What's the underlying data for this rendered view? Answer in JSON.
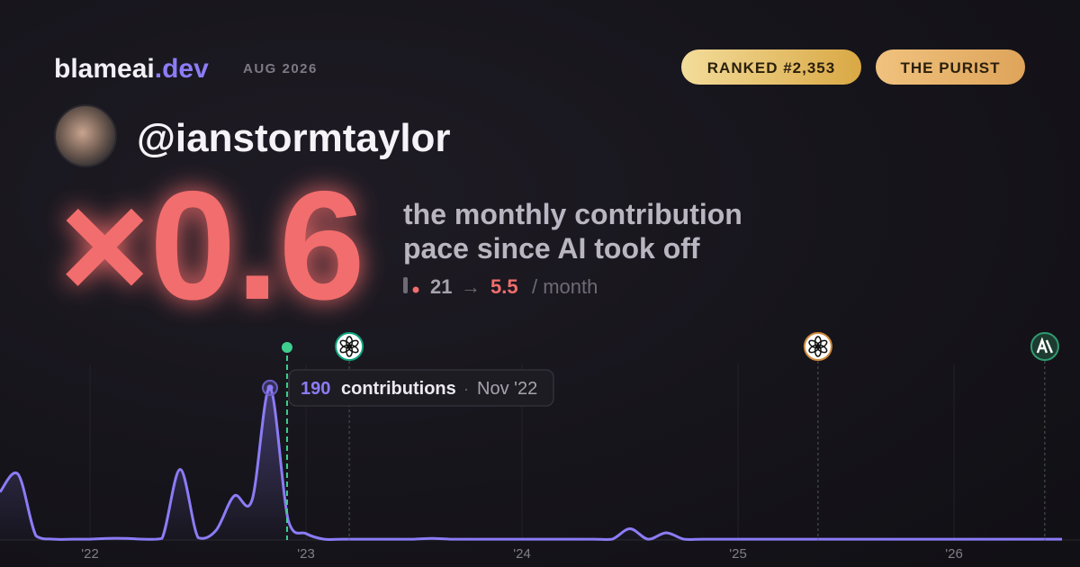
{
  "brand": {
    "name": "blameai",
    "tld": ".dev",
    "date": "AUG 2026"
  },
  "badges": [
    "RANKED #2,353",
    "THE PURIST"
  ],
  "handle": "@ianstormtaylor",
  "multiplier": "×0.6",
  "description": [
    "the monthly contribution",
    "pace since AI took off"
  ],
  "pace": {
    "before": "21",
    "arrow": "→",
    "after": "5.5",
    "unit": "/ month"
  },
  "chart_data": {
    "type": "line",
    "x": [
      2021.583,
      2021.667,
      2021.75,
      2021.833,
      2021.917,
      2022.0,
      2022.083,
      2022.167,
      2022.25,
      2022.333,
      2022.417,
      2022.5,
      2022.583,
      2022.667,
      2022.75,
      2022.833,
      2022.917,
      2023.0,
      2023.083,
      2023.167,
      2023.25,
      2023.333,
      2023.417,
      2023.5,
      2023.583,
      2023.667,
      2023.75,
      2023.833,
      2023.917,
      2024.0,
      2024.083,
      2024.167,
      2024.25,
      2024.333,
      2024.417,
      2024.5,
      2024.583,
      2024.667,
      2024.75,
      2024.833,
      2024.917,
      2025.0,
      2025.083,
      2025.167,
      2025.25,
      2025.333,
      2025.417,
      2025.5,
      2025.583,
      2025.667,
      2025.75,
      2025.833,
      2025.917,
      2026.0,
      2026.083,
      2026.167,
      2026.25,
      2026.333,
      2026.417,
      2026.5
    ],
    "series": [
      {
        "name": "contributions",
        "color": "#8b7cf6",
        "values": [
          60,
          82,
          5,
          1,
          1,
          1,
          2,
          2,
          1,
          2,
          88,
          3,
          12,
          55,
          50,
          190,
          25,
          8,
          1,
          1,
          1,
          1,
          1,
          1,
          2,
          1,
          1,
          1,
          1,
          1,
          1,
          1,
          1,
          1,
          1,
          14,
          1,
          9,
          1,
          1,
          1,
          1,
          1,
          1,
          1,
          1,
          1,
          1,
          1,
          1,
          1,
          1,
          1,
          1,
          1,
          1,
          1,
          1,
          1,
          1
        ]
      }
    ],
    "xlim": [
      2021.583,
      2026.583
    ],
    "ylim": [
      0,
      200
    ],
    "xticks": [
      {
        "value": 2022,
        "label": "'22"
      },
      {
        "value": 2023,
        "label": "'23"
      },
      {
        "value": 2024,
        "label": "'24"
      },
      {
        "value": 2025,
        "label": "'25"
      },
      {
        "value": 2026,
        "label": "'26"
      }
    ],
    "grid": true,
    "markers": [
      2022.912,
      2023.2,
      2025.37,
      2026.42
    ],
    "tooltip": {
      "index": 15,
      "unit": "contributions",
      "separator": "·",
      "date": "Nov '22"
    }
  }
}
